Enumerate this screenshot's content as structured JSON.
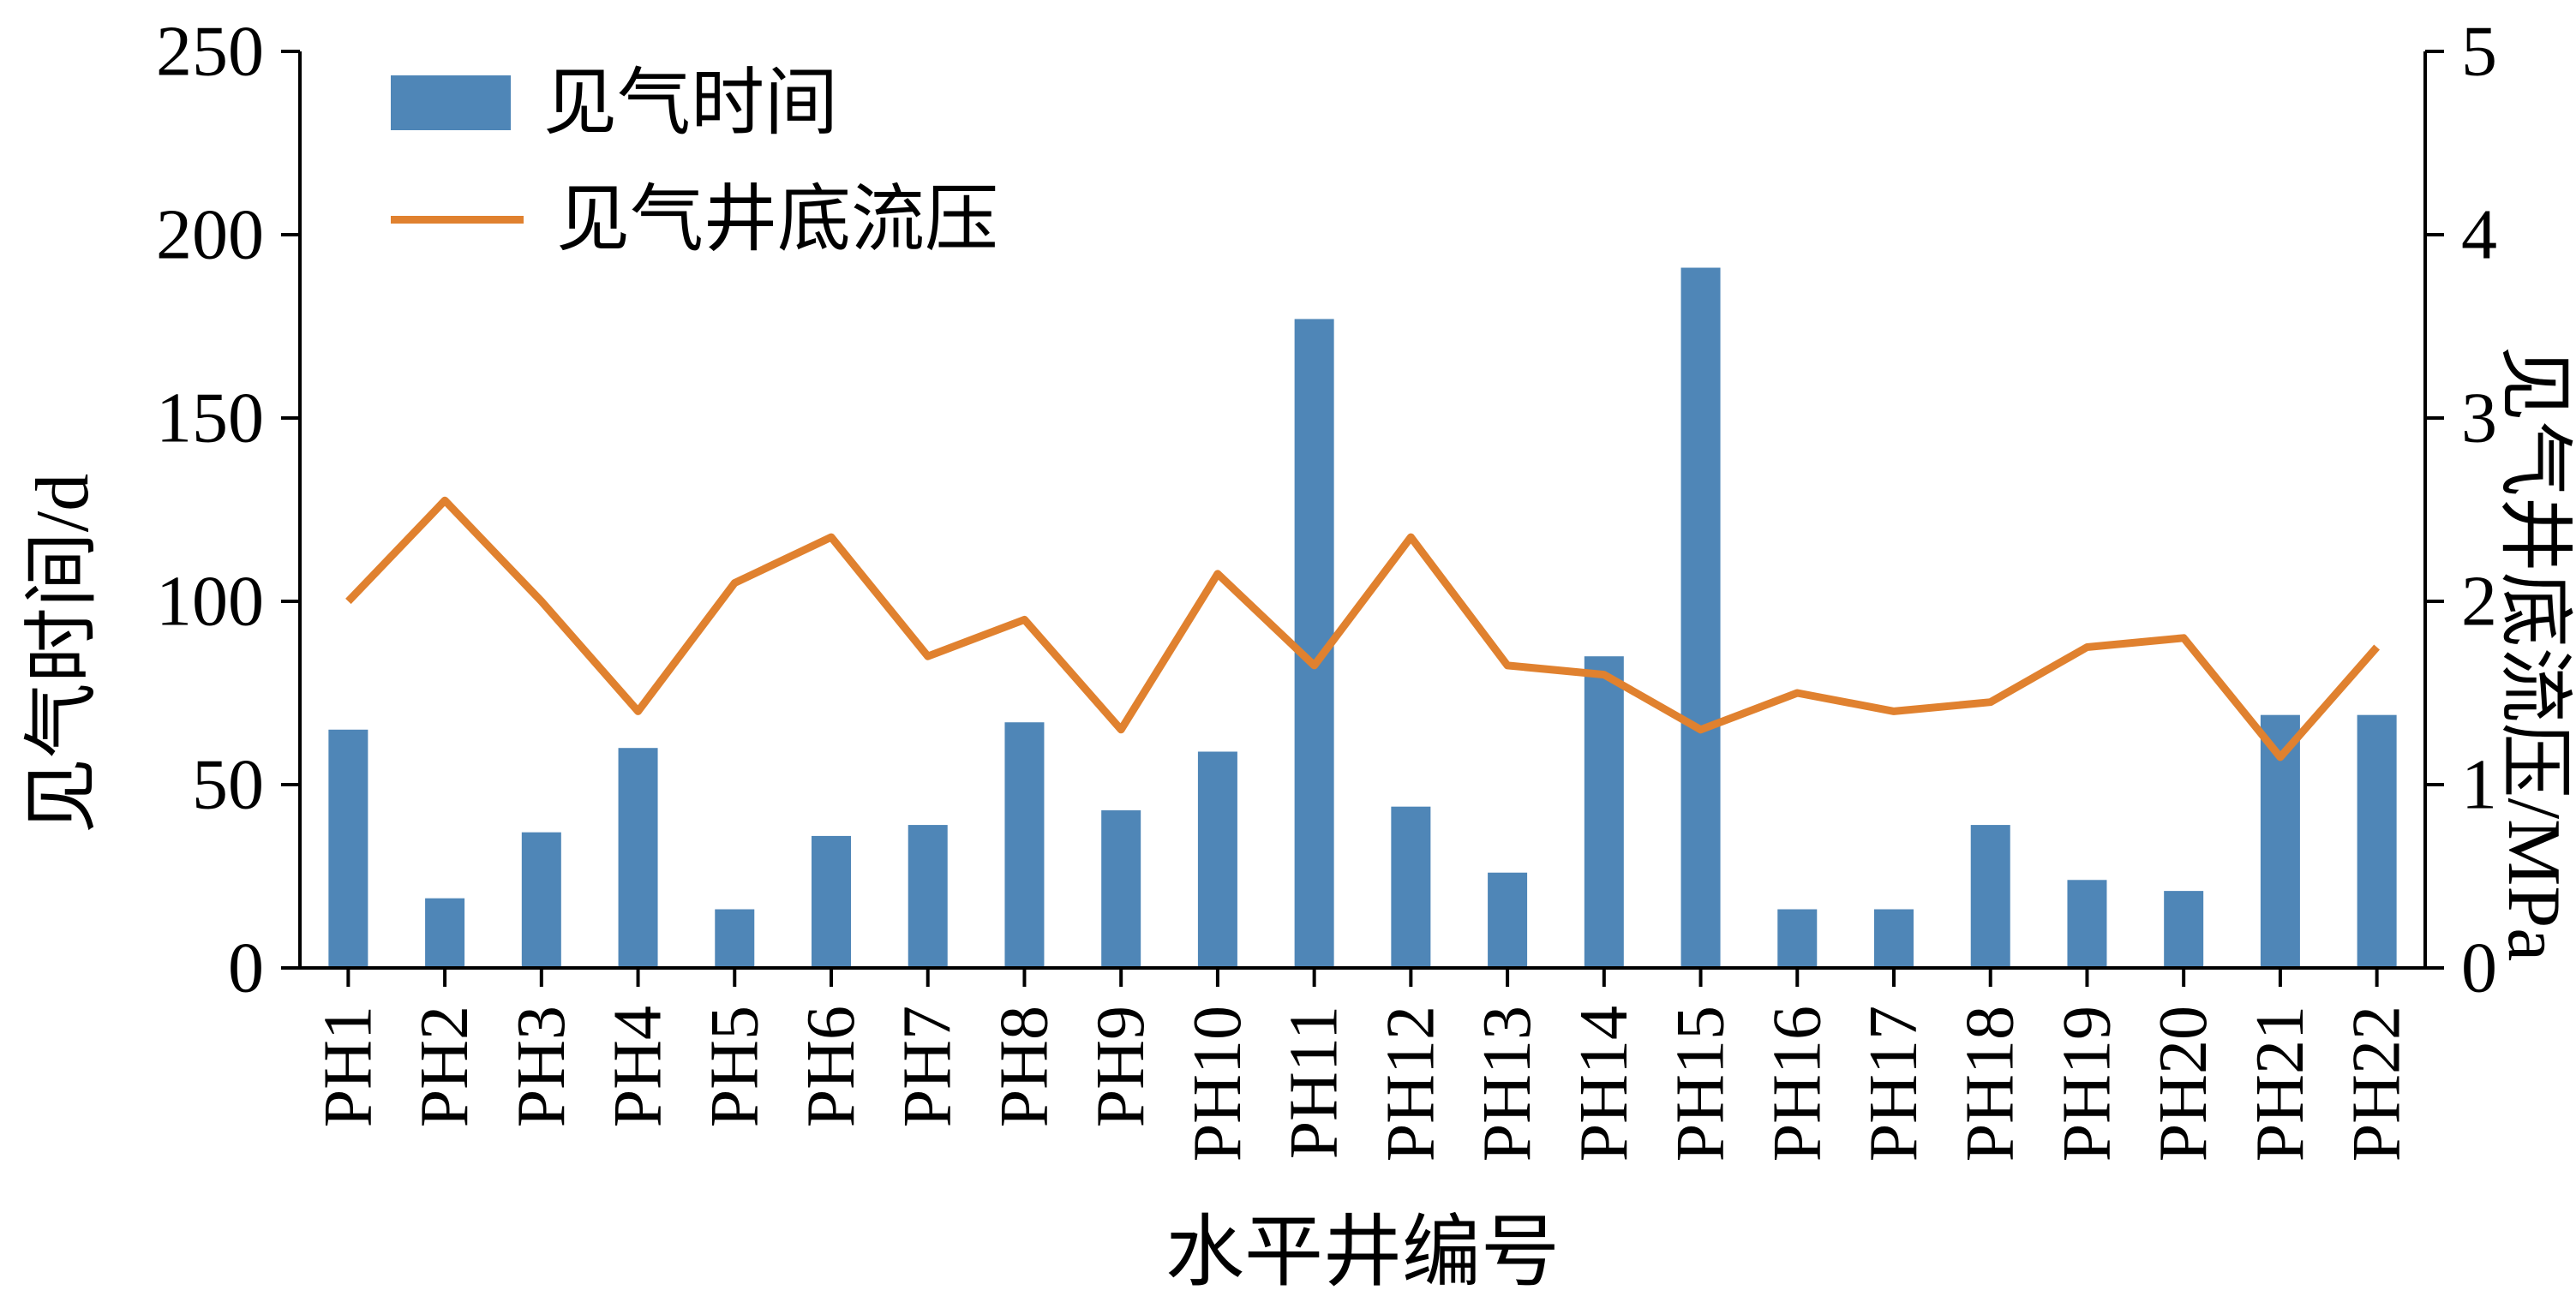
{
  "figure": {
    "background": "#ffffff"
  },
  "chart_data": {
    "type": "bar+line",
    "categories": [
      "PH1",
      "PH2",
      "PH3",
      "PH4",
      "PH5",
      "PH6",
      "PH7",
      "PH8",
      "PH9",
      "PH10",
      "PH11",
      "PH12",
      "PH13",
      "PH14",
      "PH15",
      "PH16",
      "PH17",
      "PH18",
      "PH19",
      "PH20",
      "PH21",
      "PH22"
    ],
    "series": [
      {
        "name": "见气时间",
        "type": "bar",
        "axis": "left",
        "color": "#4f86b7",
        "values": [
          65,
          19,
          37,
          60,
          16,
          36,
          39,
          67,
          43,
          59,
          177,
          44,
          26,
          85,
          191,
          16,
          16,
          39,
          24,
          21,
          69,
          69
        ]
      },
      {
        "name": "见气井底流压",
        "type": "line",
        "axis": "right",
        "color": "#e0812f",
        "values": [
          2.0,
          2.55,
          2.0,
          1.4,
          2.1,
          2.35,
          1.7,
          1.9,
          1.3,
          2.15,
          1.65,
          2.35,
          1.65,
          1.6,
          1.3,
          1.5,
          1.4,
          1.45,
          1.75,
          1.8,
          1.15,
          1.75
        ]
      }
    ],
    "xlabel": "水平井编号",
    "ylabel_left": "见气时间/d",
    "ylabel_right": "见气井底流压/MPa",
    "ylim_left": [
      0,
      250
    ],
    "ylim_right": [
      0,
      5
    ],
    "y_left_ticks": [
      0,
      50,
      100,
      150,
      200,
      250
    ],
    "y_right_ticks": [
      0,
      1,
      2,
      3,
      4,
      5
    ],
    "grid": false,
    "legend": {
      "position": "top-left",
      "entries": [
        "见气时间",
        "见气井底流压"
      ]
    }
  }
}
